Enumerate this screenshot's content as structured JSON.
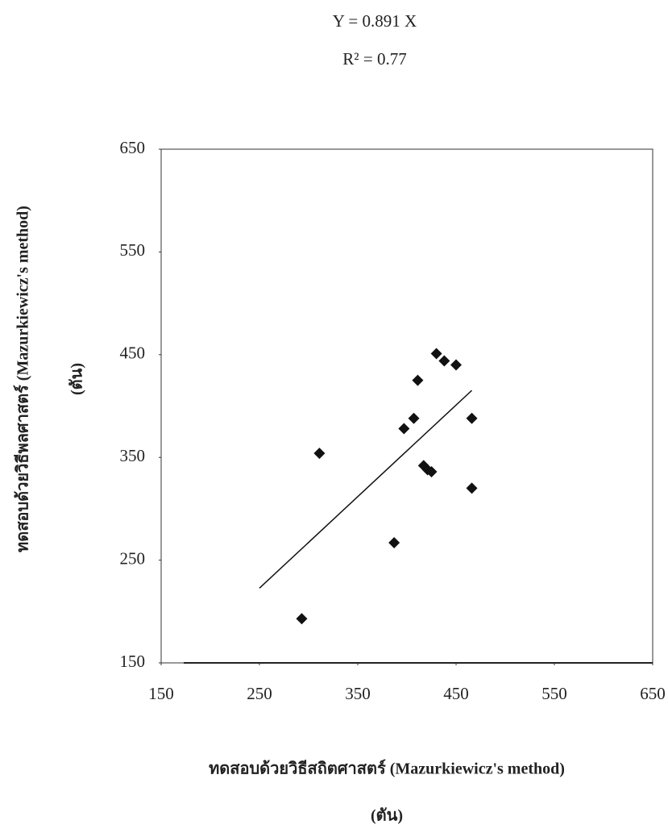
{
  "chart_data": {
    "type": "scatter",
    "equation": "Y  = 0.891 X",
    "r_squared": "R² = 0.77",
    "x_label": "ทดสอบด้วยวิธีสถิตศาสตร์ (Mazurkiewicz's method)",
    "x_unit": "(ตัน)",
    "y_label": "ทดสอบด้วยวิธีพลศาสตร์ (Mazurkiewicz's method)",
    "y_unit": "(ตัน)",
    "x": [
      293,
      311,
      387,
      397,
      407,
      411,
      417,
      421,
      425,
      430,
      438,
      450,
      466,
      466
    ],
    "values": [
      193,
      354,
      267,
      378,
      388,
      425,
      342,
      338,
      336,
      451,
      444,
      440,
      388,
      320
    ],
    "color": "#111111",
    "trendline": {
      "slope": 0.891,
      "x": [
        250,
        466
      ],
      "color": "#111111"
    },
    "xlim": [
      150,
      650
    ],
    "xticks": [
      150,
      250,
      350,
      450,
      550,
      650
    ],
    "ylim": [
      150,
      650
    ],
    "yticks": [
      150,
      250,
      350,
      450,
      550,
      650
    ]
  }
}
